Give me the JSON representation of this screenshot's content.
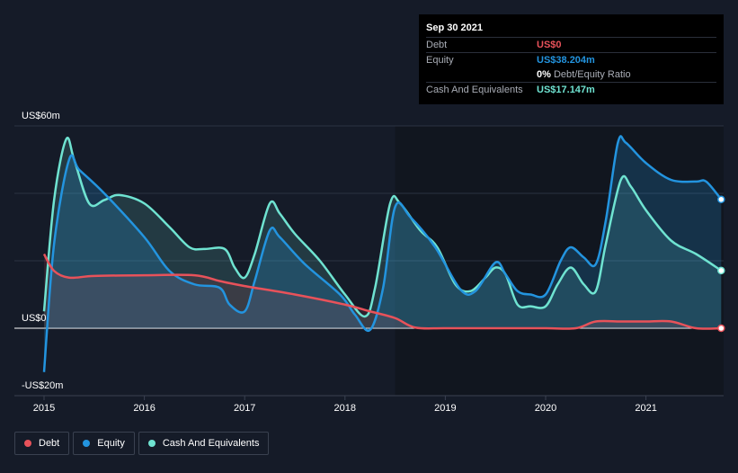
{
  "tooltip": {
    "date": "Sep 30 2021",
    "rows": [
      {
        "label": "Debt",
        "value": "US$0",
        "color": "#e8525a"
      },
      {
        "label": "Equity",
        "value": "US$38.204m",
        "color": "#2394df"
      },
      {
        "label": "",
        "value": "0%",
        "extra": "Debt/Equity Ratio",
        "color": "#ffffff"
      },
      {
        "label": "Cash And Equivalents",
        "value": "US$17.147m",
        "color": "#6fe3d1"
      }
    ]
  },
  "legend": [
    {
      "label": "Debt",
      "color": "#e8525a"
    },
    {
      "label": "Equity",
      "color": "#2394df"
    },
    {
      "label": "Cash And Equivalents",
      "color": "#6fe3d1"
    }
  ],
  "chart_data": {
    "type": "line",
    "title": "",
    "xlabel": "",
    "ylabel": "",
    "ylim": [
      -20,
      60
    ],
    "y_tick_labels": [
      {
        "value": 60,
        "label": "US$60m"
      },
      {
        "value": 0,
        "label": "US$0"
      },
      {
        "value": -20,
        "label": "-US$20m"
      }
    ],
    "x_ticks": [
      2015,
      2016,
      2017,
      2018,
      2019,
      2020,
      2021
    ],
    "series": [
      {
        "name": "Cash And Equivalents",
        "color": "#6fe3d1",
        "points": [
          [
            2015.0,
            5
          ],
          [
            2015.1,
            38
          ],
          [
            2015.22,
            56
          ],
          [
            2015.3,
            50
          ],
          [
            2015.45,
            37
          ],
          [
            2015.6,
            38
          ],
          [
            2015.75,
            39.5
          ],
          [
            2016.0,
            37
          ],
          [
            2016.25,
            30
          ],
          [
            2016.45,
            24
          ],
          [
            2016.6,
            23.5
          ],
          [
            2016.8,
            23.5
          ],
          [
            2016.9,
            18
          ],
          [
            2017.0,
            15
          ],
          [
            2017.1,
            22
          ],
          [
            2017.25,
            37
          ],
          [
            2017.35,
            34
          ],
          [
            2017.5,
            28
          ],
          [
            2017.75,
            20
          ],
          [
            2018.0,
            10
          ],
          [
            2018.2,
            3.5
          ],
          [
            2018.3,
            12
          ],
          [
            2018.45,
            37
          ],
          [
            2018.55,
            37
          ],
          [
            2018.75,
            29
          ],
          [
            2018.92,
            24
          ],
          [
            2019.1,
            13
          ],
          [
            2019.25,
            11
          ],
          [
            2019.4,
            15
          ],
          [
            2019.5,
            18
          ],
          [
            2019.6,
            16
          ],
          [
            2019.72,
            7
          ],
          [
            2019.85,
            6.5
          ],
          [
            2020.0,
            6.5
          ],
          [
            2020.12,
            13
          ],
          [
            2020.25,
            18
          ],
          [
            2020.38,
            13
          ],
          [
            2020.5,
            11
          ],
          [
            2020.6,
            25
          ],
          [
            2020.75,
            44
          ],
          [
            2020.85,
            42
          ],
          [
            2021.0,
            35
          ],
          [
            2021.25,
            26
          ],
          [
            2021.5,
            22
          ],
          [
            2021.75,
            17.1
          ]
        ]
      },
      {
        "name": "Equity",
        "color": "#2394df",
        "points": [
          [
            2015.0,
            -13
          ],
          [
            2015.1,
            25
          ],
          [
            2015.25,
            50
          ],
          [
            2015.35,
            47
          ],
          [
            2015.6,
            40
          ],
          [
            2016.0,
            27
          ],
          [
            2016.25,
            17
          ],
          [
            2016.5,
            13
          ],
          [
            2016.75,
            12
          ],
          [
            2016.85,
            7
          ],
          [
            2017.0,
            5
          ],
          [
            2017.1,
            14
          ],
          [
            2017.25,
            29
          ],
          [
            2017.35,
            27
          ],
          [
            2017.6,
            19
          ],
          [
            2017.95,
            10
          ],
          [
            2018.1,
            4
          ],
          [
            2018.25,
            -0.5
          ],
          [
            2018.38,
            12
          ],
          [
            2018.5,
            36
          ],
          [
            2018.65,
            33
          ],
          [
            2018.9,
            24
          ],
          [
            2019.15,
            11.5
          ],
          [
            2019.3,
            11
          ],
          [
            2019.5,
            19.5
          ],
          [
            2019.6,
            16
          ],
          [
            2019.72,
            11
          ],
          [
            2019.85,
            10
          ],
          [
            2020.0,
            10
          ],
          [
            2020.15,
            20
          ],
          [
            2020.25,
            24
          ],
          [
            2020.38,
            21
          ],
          [
            2020.5,
            19
          ],
          [
            2020.6,
            32
          ],
          [
            2020.72,
            55
          ],
          [
            2020.8,
            55
          ],
          [
            2021.0,
            49
          ],
          [
            2021.25,
            44
          ],
          [
            2021.5,
            43.5
          ],
          [
            2021.6,
            43.5
          ],
          [
            2021.75,
            38.2
          ]
        ]
      },
      {
        "name": "Debt",
        "color": "#e8525a",
        "points": [
          [
            2015.0,
            22
          ],
          [
            2015.1,
            17
          ],
          [
            2015.25,
            15
          ],
          [
            2015.5,
            15.5
          ],
          [
            2016.0,
            15.7
          ],
          [
            2016.5,
            15.7
          ],
          [
            2016.75,
            14
          ],
          [
            2017.0,
            12.5
          ],
          [
            2017.5,
            10
          ],
          [
            2018.0,
            7
          ],
          [
            2018.25,
            5
          ],
          [
            2018.5,
            3
          ],
          [
            2018.7,
            0.2
          ],
          [
            2019.0,
            0
          ],
          [
            2019.5,
            0
          ],
          [
            2020.0,
            0
          ],
          [
            2020.3,
            0
          ],
          [
            2020.5,
            2
          ],
          [
            2020.75,
            2
          ],
          [
            2021.0,
            2
          ],
          [
            2021.25,
            2
          ],
          [
            2021.5,
            0
          ],
          [
            2021.75,
            0
          ]
        ]
      }
    ]
  }
}
